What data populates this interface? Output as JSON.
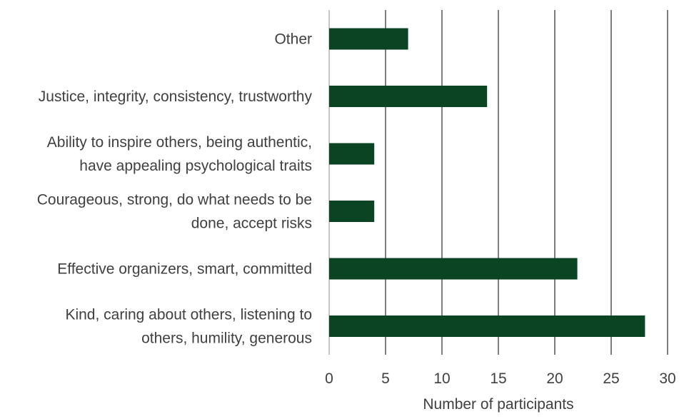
{
  "chart_data": {
    "type": "bar",
    "orientation": "horizontal",
    "categories": [
      [
        "Other"
      ],
      [
        "Justice, integrity, consistency, trustworthy"
      ],
      [
        "Ability to inspire others, being authentic,",
        "have appealing psychological traits"
      ],
      [
        "Courageous, strong, do what needs to be",
        "done, accept risks"
      ],
      [
        "Effective organizers, smart, committed"
      ],
      [
        "Kind, caring about others, listening to",
        "others, humility, generous"
      ]
    ],
    "values": [
      7,
      14,
      4,
      4,
      22,
      28
    ],
    "xlabel": "Number of participants",
    "ylabel": "",
    "xlim": [
      0,
      30
    ],
    "xticks": [
      "0",
      "5",
      "10",
      "15",
      "20",
      "25",
      "30"
    ],
    "grid": true,
    "legend": "none",
    "colors": {
      "bar": "#0a4423",
      "grid": "#3a3a3a",
      "axis": "#c8c8c8",
      "text": "#404040"
    }
  }
}
